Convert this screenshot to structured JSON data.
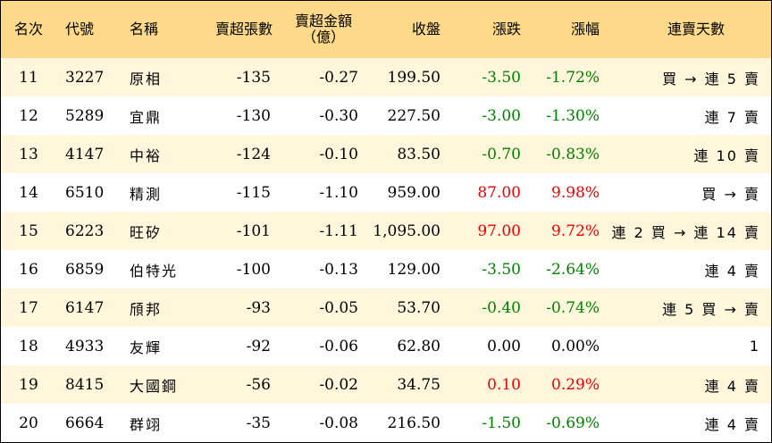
{
  "headers": {
    "rank": "名次",
    "code": "代號",
    "name": "名稱",
    "sell_lots": "賣超張數",
    "sell_amount_line1": "賣超金額",
    "sell_amount_line2": "（億）",
    "close": "收盤",
    "change": "漲跌",
    "pct": "漲幅",
    "streak": "連賣天數"
  },
  "colors": {
    "header_bg": "#fdd98a",
    "stripe_bg": "#fff6dc",
    "up": "#ee0000",
    "down": "#008000"
  },
  "rows": [
    {
      "rank": "11",
      "code": "3227",
      "name": "原相",
      "lots": "-135",
      "amount": "-0.27",
      "close": "199.50",
      "change": "-3.50",
      "pct": "-1.72%",
      "streak": "買 → 連 5 賣",
      "dir": "neg"
    },
    {
      "rank": "12",
      "code": "5289",
      "name": "宜鼎",
      "lots": "-130",
      "amount": "-0.30",
      "close": "227.50",
      "change": "-3.00",
      "pct": "-1.30%",
      "streak": "連 7 賣",
      "dir": "neg"
    },
    {
      "rank": "13",
      "code": "4147",
      "name": "中裕",
      "lots": "-124",
      "amount": "-0.10",
      "close": "83.50",
      "change": "-0.70",
      "pct": "-0.83%",
      "streak": "連 10 賣",
      "dir": "neg"
    },
    {
      "rank": "14",
      "code": "6510",
      "name": "精測",
      "lots": "-115",
      "amount": "-1.10",
      "close": "959.00",
      "change": "87.00",
      "pct": "9.98%",
      "streak": "買 → 賣",
      "dir": "pos"
    },
    {
      "rank": "15",
      "code": "6223",
      "name": "旺矽",
      "lots": "-101",
      "amount": "-1.11",
      "close": "1,095.00",
      "change": "97.00",
      "pct": "9.72%",
      "streak": "連 2 買 → 連 14 賣",
      "dir": "pos"
    },
    {
      "rank": "16",
      "code": "6859",
      "name": "伯特光",
      "lots": "-100",
      "amount": "-0.13",
      "close": "129.00",
      "change": "-3.50",
      "pct": "-2.64%",
      "streak": "連 4 賣",
      "dir": "neg"
    },
    {
      "rank": "17",
      "code": "6147",
      "name": "頎邦",
      "lots": "-93",
      "amount": "-0.05",
      "close": "53.70",
      "change": "-0.40",
      "pct": "-0.74%",
      "streak": "連 5 買 → 賣",
      "dir": "neg"
    },
    {
      "rank": "18",
      "code": "4933",
      "name": "友輝",
      "lots": "-92",
      "amount": "-0.06",
      "close": "62.80",
      "change": "0.00",
      "pct": "0.00%",
      "streak": "1",
      "dir": "zero"
    },
    {
      "rank": "19",
      "code": "8415",
      "name": "大國鋼",
      "lots": "-56",
      "amount": "-0.02",
      "close": "34.75",
      "change": "0.10",
      "pct": "0.29%",
      "streak": "連 4 賣",
      "dir": "pos"
    },
    {
      "rank": "20",
      "code": "6664",
      "name": "群翊",
      "lots": "-35",
      "amount": "-0.08",
      "close": "216.50",
      "change": "-1.50",
      "pct": "-0.69%",
      "streak": "連 4 賣",
      "dir": "neg"
    }
  ]
}
